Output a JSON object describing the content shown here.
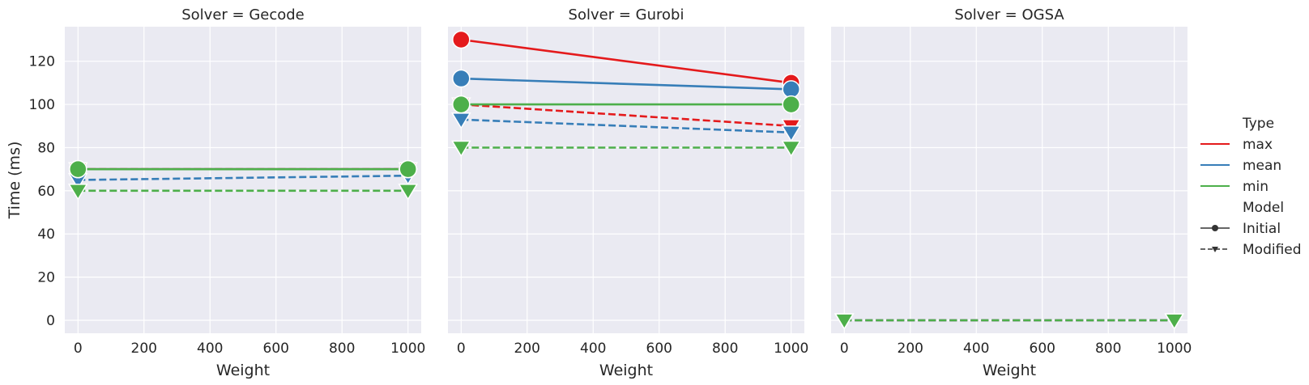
{
  "chart_data": {
    "type": "line",
    "facet_label": "Solver",
    "facets": [
      "Gecode",
      "Gurobi",
      "OGSA"
    ],
    "facet_titles": [
      "Solver = Gecode",
      "Solver = Gurobi",
      "Solver = OGSA"
    ],
    "xlabel": "Weight",
    "ylabel": "Time (ms)",
    "x_ticks": [
      0,
      200,
      400,
      600,
      800,
      1000
    ],
    "y_ticks": [
      0,
      20,
      40,
      60,
      80,
      100,
      120
    ],
    "xlim": [
      -40,
      1040
    ],
    "ylim": [
      -6,
      136
    ],
    "grid": true,
    "legend_placement": "right",
    "hue_title": "Type",
    "style_title": "Model",
    "hue_levels": [
      {
        "name": "max",
        "color": "#e41a1c"
      },
      {
        "name": "mean",
        "color": "#377eb8"
      },
      {
        "name": "min",
        "color": "#4daf4a"
      }
    ],
    "style_levels": [
      {
        "name": "Initial",
        "dash": "solid",
        "marker": "circle"
      },
      {
        "name": "Modified",
        "dash": "dashed",
        "marker": "triangle-down"
      }
    ],
    "series": [
      {
        "facet": "Gecode",
        "type": "max",
        "model": "Initial",
        "x": [
          0,
          1000
        ],
        "y": [
          70,
          70
        ]
      },
      {
        "facet": "Gecode",
        "type": "mean",
        "model": "Initial",
        "x": [
          0,
          1000
        ],
        "y": [
          70,
          70
        ]
      },
      {
        "facet": "Gecode",
        "type": "min",
        "model": "Initial",
        "x": [
          0,
          1000
        ],
        "y": [
          70,
          70
        ]
      },
      {
        "facet": "Gecode",
        "type": "max",
        "model": "Modified",
        "x": [
          0,
          1000
        ],
        "y": [
          70,
          70
        ]
      },
      {
        "facet": "Gecode",
        "type": "mean",
        "model": "Modified",
        "x": [
          0,
          1000
        ],
        "y": [
          65,
          67
        ]
      },
      {
        "facet": "Gecode",
        "type": "min",
        "model": "Modified",
        "x": [
          0,
          1000
        ],
        "y": [
          60,
          60
        ]
      },
      {
        "facet": "Gurobi",
        "type": "max",
        "model": "Initial",
        "x": [
          0,
          1000
        ],
        "y": [
          130,
          110
        ]
      },
      {
        "facet": "Gurobi",
        "type": "mean",
        "model": "Initial",
        "x": [
          0,
          1000
        ],
        "y": [
          112,
          107
        ]
      },
      {
        "facet": "Gurobi",
        "type": "min",
        "model": "Initial",
        "x": [
          0,
          1000
        ],
        "y": [
          100,
          100
        ]
      },
      {
        "facet": "Gurobi",
        "type": "max",
        "model": "Modified",
        "x": [
          0,
          1000
        ],
        "y": [
          100,
          90
        ]
      },
      {
        "facet": "Gurobi",
        "type": "mean",
        "model": "Modified",
        "x": [
          0,
          1000
        ],
        "y": [
          93,
          87
        ]
      },
      {
        "facet": "Gurobi",
        "type": "min",
        "model": "Modified",
        "x": [
          0,
          1000
        ],
        "y": [
          80,
          80
        ]
      },
      {
        "facet": "OGSA",
        "type": "max",
        "model": "Modified",
        "x": [
          0,
          1000
        ],
        "y": [
          0,
          0
        ]
      },
      {
        "facet": "OGSA",
        "type": "mean",
        "model": "Modified",
        "x": [
          0,
          1000
        ],
        "y": [
          0,
          0
        ]
      },
      {
        "facet": "OGSA",
        "type": "min",
        "model": "Modified",
        "x": [
          0,
          1000
        ],
        "y": [
          0,
          0
        ]
      }
    ]
  }
}
